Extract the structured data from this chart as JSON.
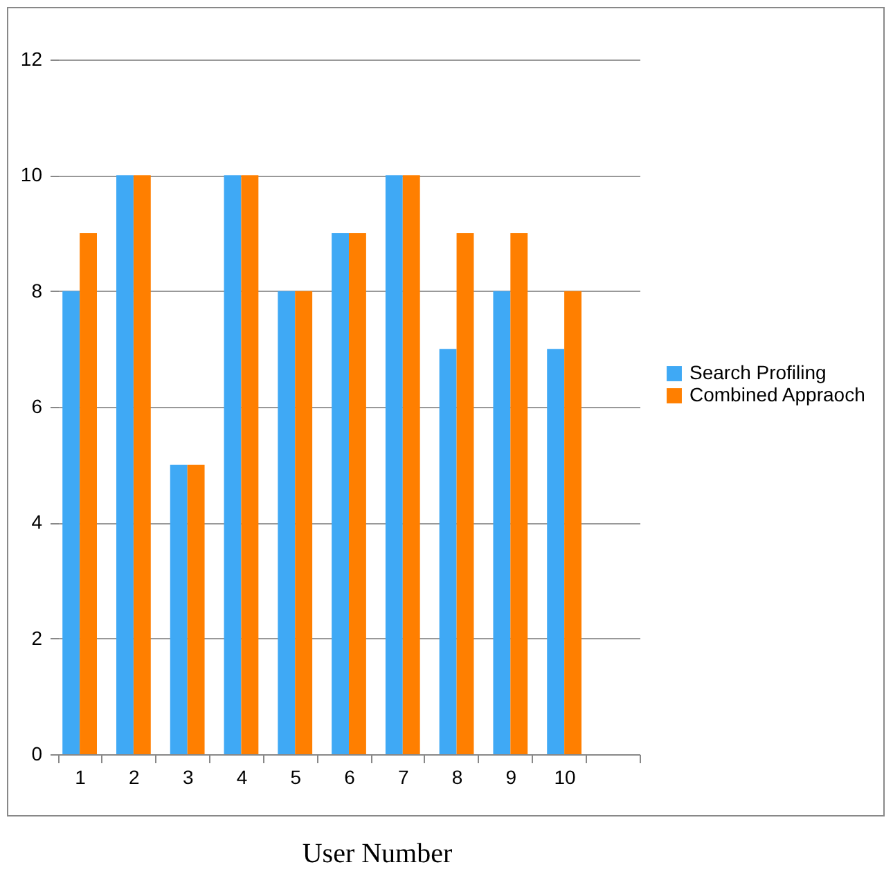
{
  "chart_data": {
    "type": "bar",
    "xlabel": "User Number",
    "categories": [
      "1",
      "2",
      "3",
      "4",
      "5",
      "6",
      "7",
      "8",
      "9",
      "10",
      null
    ],
    "series": [
      {
        "name": "Search Profiling",
        "color": "#3fa9f5",
        "values": [
          8,
          10,
          5,
          10,
          8,
          9,
          10,
          7,
          8,
          7,
          null
        ]
      },
      {
        "name": "Combined Appraoch",
        "color": "#ff7f00",
        "values": [
          9,
          10,
          5,
          10,
          8,
          9,
          10,
          9,
          9,
          8,
          null
        ]
      }
    ],
    "ylim": [
      0,
      12
    ],
    "yticks": [
      0,
      2,
      4,
      6,
      8,
      10,
      12
    ],
    "grid": "y",
    "legend": "right"
  }
}
